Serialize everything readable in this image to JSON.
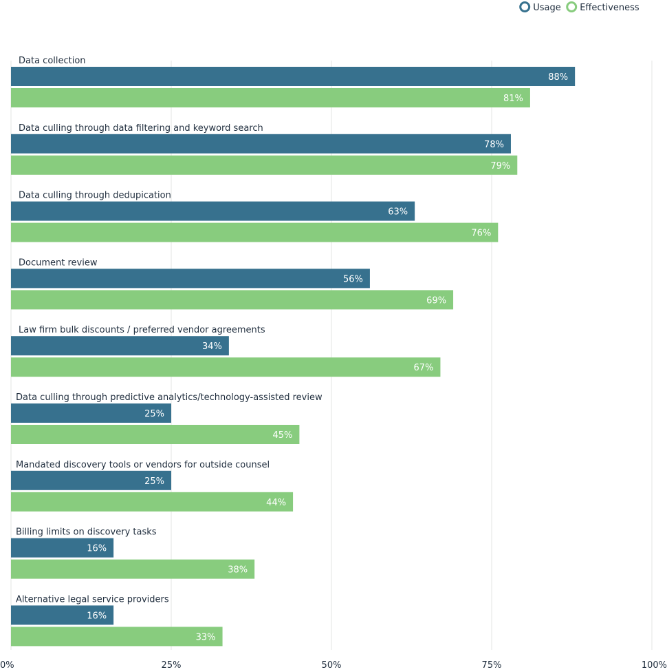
{
  "chart_data": {
    "type": "bar",
    "orientation": "horizontal",
    "categories": [
      "Data collection",
      "Data culling through data filtering and keyword search",
      "Data culling through dedupication",
      "Document review",
      "Law firm bulk discounts / preferred vendor agreements",
      "Data culling through predictive analytics/technology-assisted review",
      "Mandated discovery tools or vendors for outside counsel",
      "Billing limits on discovery tasks",
      "Alternative legal service providers"
    ],
    "series": [
      {
        "name": "Usage",
        "color": "#37718e",
        "values": [
          88,
          78,
          63,
          56,
          34,
          25,
          25,
          16,
          16
        ]
      },
      {
        "name": "Effectiveness",
        "color": "#88cc7e",
        "values": [
          81,
          79,
          76,
          69,
          67,
          45,
          44,
          38,
          33
        ]
      }
    ],
    "value_suffix": "%",
    "xlim": [
      0,
      100
    ],
    "x_ticks": [
      0,
      25,
      50,
      75,
      100
    ],
    "x_tick_labels": [
      "0%",
      "25%",
      "50%",
      "75%",
      "100%"
    ],
    "grid": true,
    "legend_position": "top-right",
    "grid_color": "#e3e6e3",
    "text_color": "#1f2d3d"
  }
}
